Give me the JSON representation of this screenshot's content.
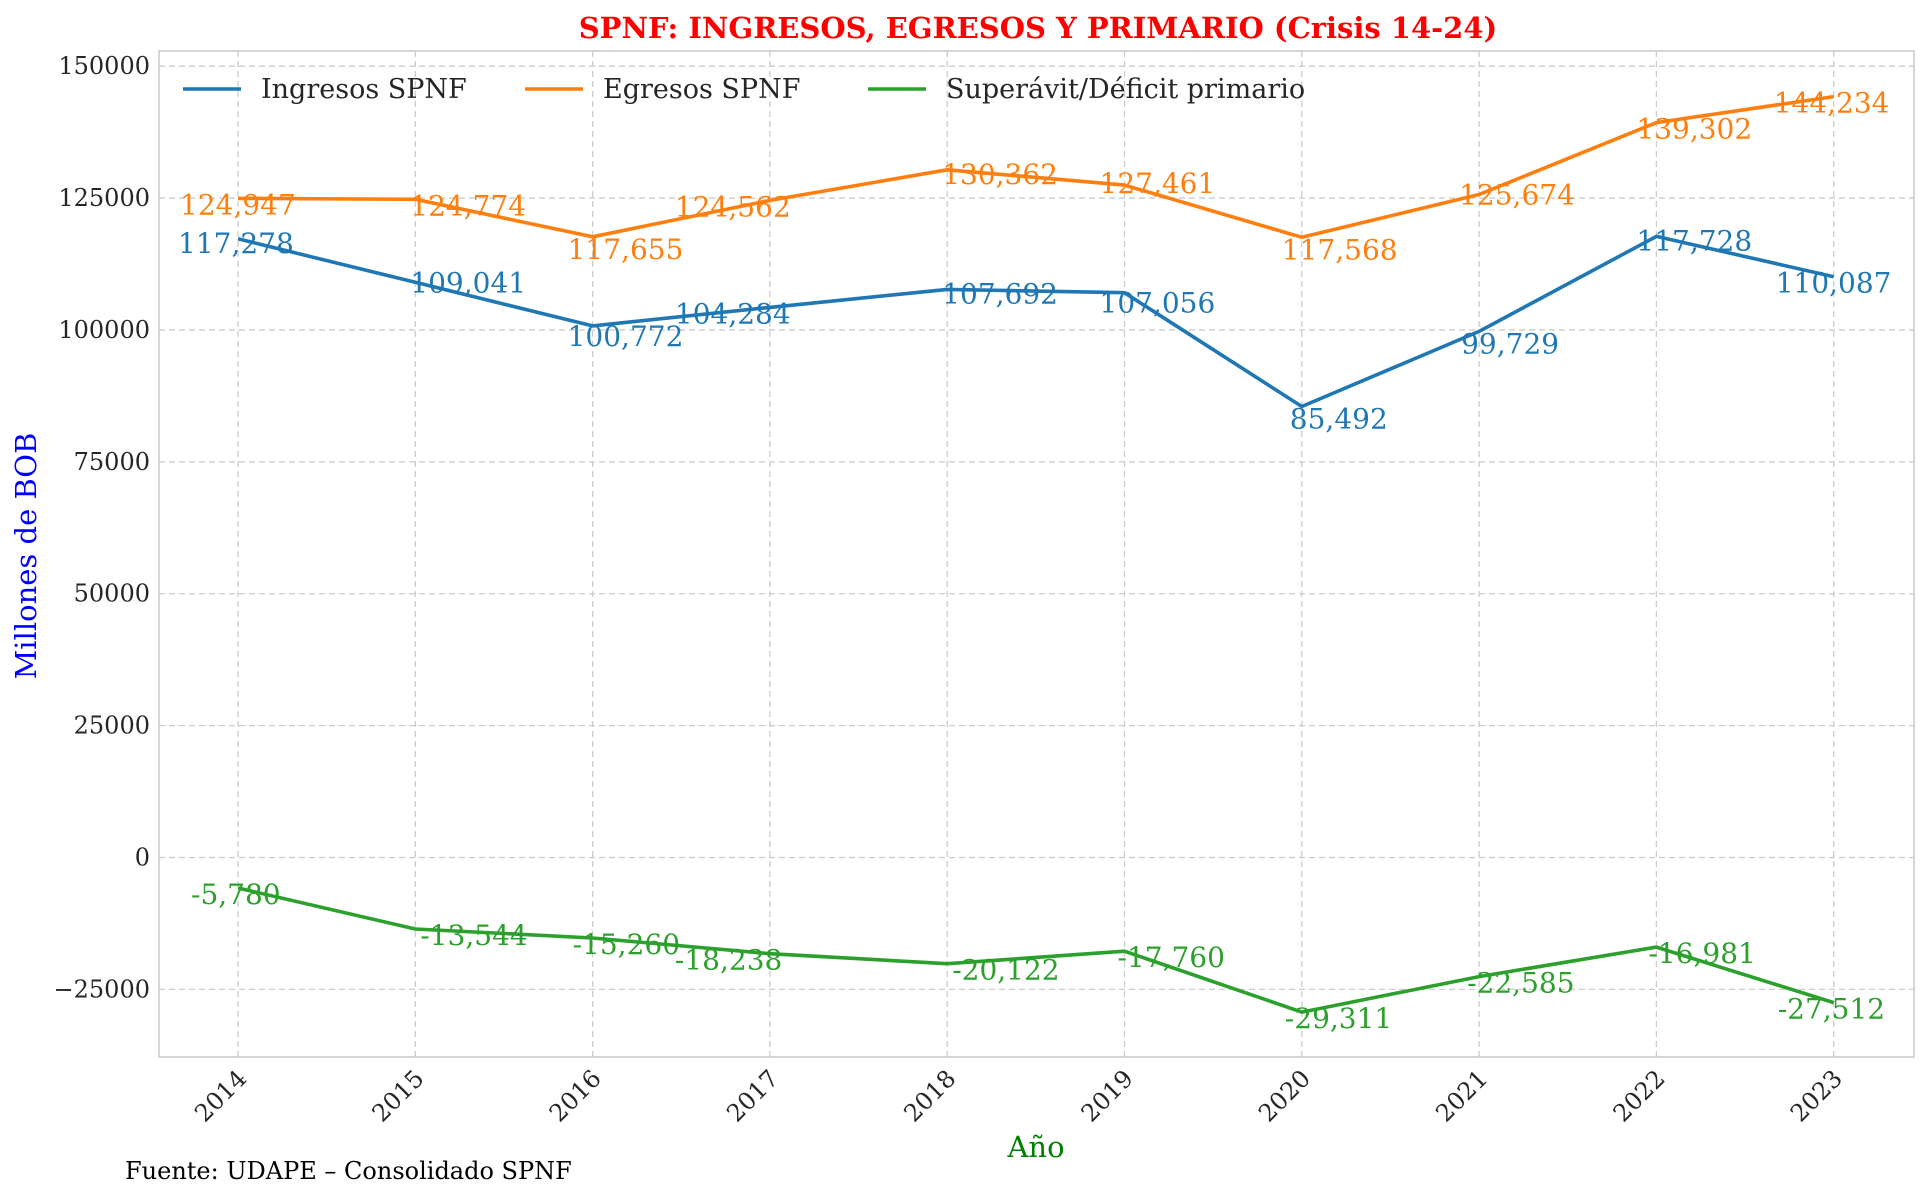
{
  "chart_data": {
    "type": "line",
    "title": "SPNF: INGRESOS, EGRESOS Y PRIMARIO (Crisis 14-24)",
    "xlabel": "Año",
    "ylabel": "Millones de BOB",
    "source": "Fuente: UDAPE – Consolidado SPNF",
    "x": [
      "2014",
      "2015",
      "2016",
      "2017",
      "2018",
      "2019",
      "2020",
      "2021",
      "2022",
      "2023"
    ],
    "y_ticks": [
      "−25000",
      "0",
      "25000",
      "50000",
      "75000",
      "100000",
      "125000",
      "150000"
    ],
    "ylim": [
      -37500,
      150000
    ],
    "grid": true,
    "legend_position": "top-left",
    "series": [
      {
        "name": "Ingresos SPNF",
        "color": "#1f77b4",
        "values": [
          117278,
          109041,
          100772,
          104284,
          107692,
          107056,
          85492,
          99729,
          117728,
          110087
        ],
        "labels": [
          "117,278",
          "109,041",
          "100,772",
          "104,284",
          "107,692",
          "107,056",
          "85,492",
          "99,729",
          "117,728",
          "110,087"
        ]
      },
      {
        "name": "Egresos SPNF",
        "color": "#ff7f0e",
        "values": [
          124947,
          124774,
          117655,
          124562,
          130362,
          127461,
          117568,
          125674,
          139302,
          144234
        ],
        "labels": [
          "124,947",
          "124,774",
          "117,655",
          "124,562",
          "130,362",
          "127,461",
          "117,568",
          "125,674",
          "139,302",
          "144,234"
        ]
      },
      {
        "name": "Superávit/Déficit primario",
        "color": "#2ca02c",
        "values": [
          -5780,
          -13544,
          -15260,
          -18238,
          -20122,
          -17760,
          -29311,
          -22585,
          -16981,
          -27512
        ],
        "labels": [
          "-5,780",
          "-13,544",
          "-15,260",
          "-18,238",
          "-20,122",
          "-17,760",
          "-29,311",
          "-22,585",
          "-16,981",
          "-27,512"
        ]
      }
    ]
  }
}
